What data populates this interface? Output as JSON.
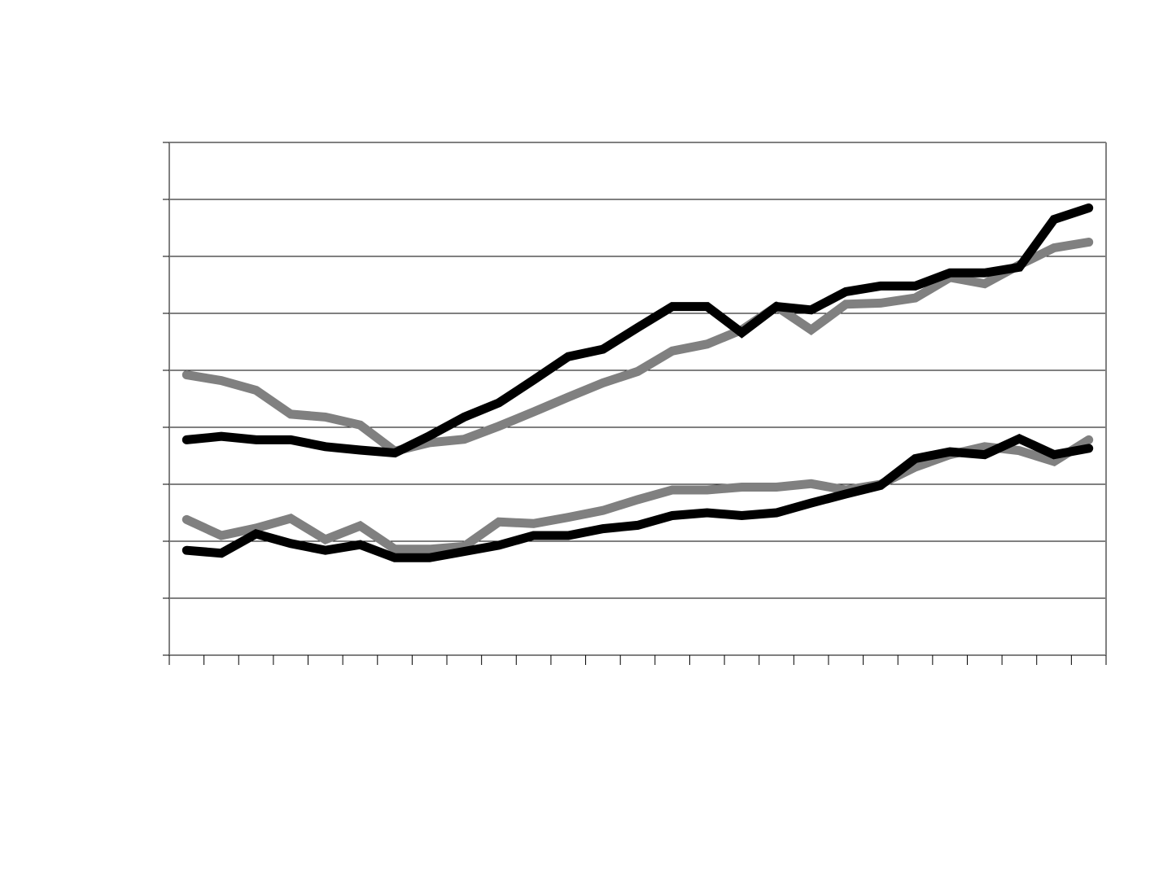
{
  "chart_data": {
    "type": "line",
    "title": "",
    "xlabel": "",
    "ylabel": "",
    "grid": true,
    "legend": "none",
    "ylim": [
      0,
      9
    ],
    "x": [
      1,
      2,
      3,
      4,
      5,
      6,
      7,
      8,
      9,
      10,
      11,
      12,
      13,
      14,
      15,
      16,
      17,
      18,
      19,
      20,
      21,
      22,
      23,
      24,
      25,
      26,
      27
    ],
    "series": [
      {
        "color": "#808080",
        "values": [
          4.92,
          4.82,
          4.65,
          4.23,
          4.18,
          4.04,
          3.58,
          3.73,
          3.79,
          4.02,
          4.27,
          4.53,
          4.78,
          4.98,
          5.34,
          5.46,
          5.71,
          6.12,
          5.71,
          6.16,
          6.18,
          6.27,
          6.63,
          6.52,
          6.85,
          7.15,
          7.25
        ]
      },
      {
        "color": "#000000",
        "values": [
          3.78,
          3.84,
          3.78,
          3.78,
          3.66,
          3.6,
          3.55,
          3.85,
          4.18,
          4.43,
          4.83,
          5.24,
          5.37,
          5.75,
          6.12,
          6.12,
          5.66,
          6.12,
          6.06,
          6.38,
          6.48,
          6.48,
          6.71,
          6.71,
          6.81,
          7.65,
          7.85
        ]
      },
      {
        "color": "#808080",
        "values": [
          2.38,
          2.1,
          2.23,
          2.4,
          2.03,
          2.27,
          1.86,
          1.86,
          1.91,
          2.34,
          2.31,
          2.42,
          2.54,
          2.73,
          2.9,
          2.9,
          2.95,
          2.95,
          3.01,
          2.9,
          3.0,
          3.3,
          3.52,
          3.66,
          3.59,
          3.4,
          3.78
        ]
      },
      {
        "color": "#000000",
        "values": [
          1.84,
          1.79,
          2.13,
          1.96,
          1.84,
          1.94,
          1.71,
          1.71,
          1.82,
          1.93,
          2.1,
          2.1,
          2.22,
          2.28,
          2.45,
          2.5,
          2.45,
          2.5,
          2.67,
          2.83,
          2.98,
          3.45,
          3.57,
          3.52,
          3.8,
          3.52,
          3.63
        ]
      }
    ]
  }
}
